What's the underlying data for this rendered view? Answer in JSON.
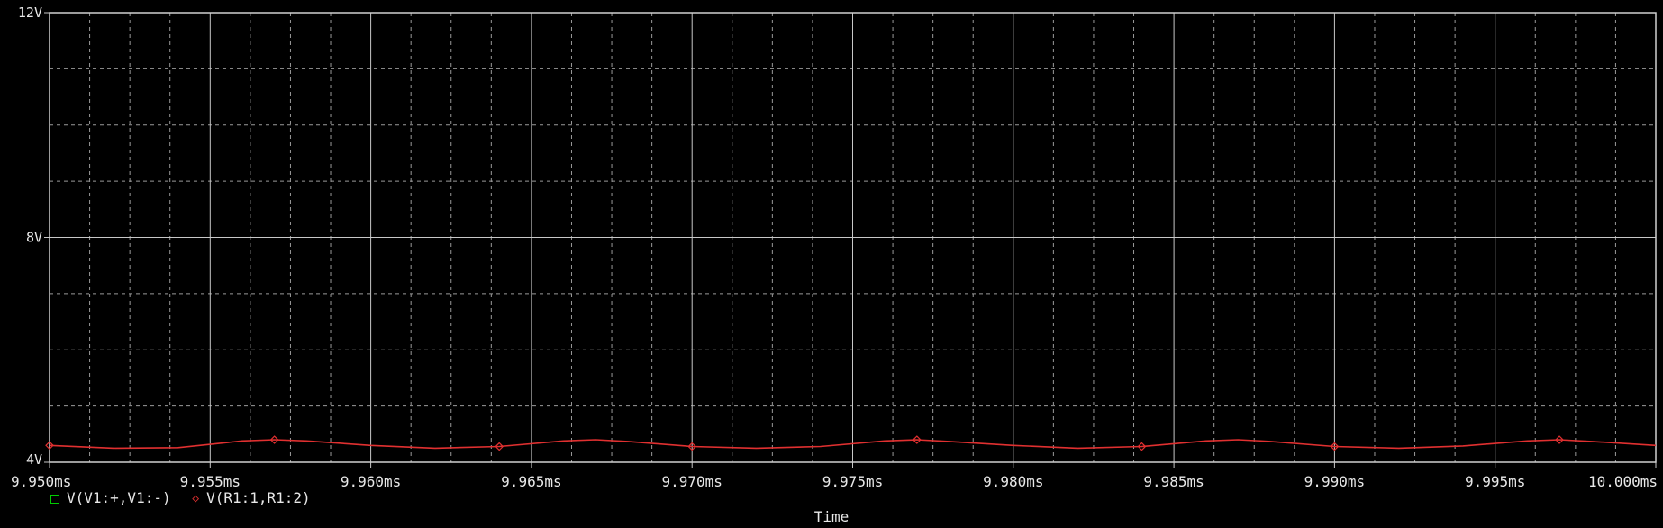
{
  "chart_data": {
    "type": "line",
    "xlabel": "Time",
    "ylabel": "",
    "xlim": [
      9.95,
      10.0
    ],
    "ylim": [
      4,
      12
    ],
    "x_unit": "ms",
    "y_unit": "V",
    "x_ticks": [
      "9.950ms",
      "9.955ms",
      "9.960ms",
      "9.965ms",
      "9.970ms",
      "9.975ms",
      "9.980ms",
      "9.985ms",
      "9.990ms",
      "9.995ms",
      "10.000ms"
    ],
    "y_ticks": [
      "4V",
      "8V",
      "12V"
    ],
    "grid": true,
    "legend": "bottom-left",
    "series": [
      {
        "name": "V(V1:+,V1:-)",
        "color": "#00cc00",
        "values": []
      },
      {
        "name": "V(R1:1,R1:2)",
        "color": "#e03030",
        "x": [
          9.95,
          9.952,
          9.954,
          9.956,
          9.957,
          9.958,
          9.96,
          9.962,
          9.964,
          9.966,
          9.967,
          9.968,
          9.97,
          9.972,
          9.974,
          9.976,
          9.977,
          9.978,
          9.98,
          9.982,
          9.984,
          9.986,
          9.987,
          9.988,
          9.99,
          9.992,
          9.994,
          9.996,
          9.997,
          9.998,
          10.0
        ],
        "values": [
          4.3,
          4.25,
          4.26,
          4.38,
          4.4,
          4.38,
          4.3,
          4.25,
          4.28,
          4.38,
          4.4,
          4.37,
          4.28,
          4.25,
          4.28,
          4.38,
          4.4,
          4.37,
          4.3,
          4.25,
          4.28,
          4.38,
          4.4,
          4.37,
          4.28,
          4.25,
          4.29,
          4.38,
          4.4,
          4.37,
          4.3
        ]
      }
    ]
  }
}
